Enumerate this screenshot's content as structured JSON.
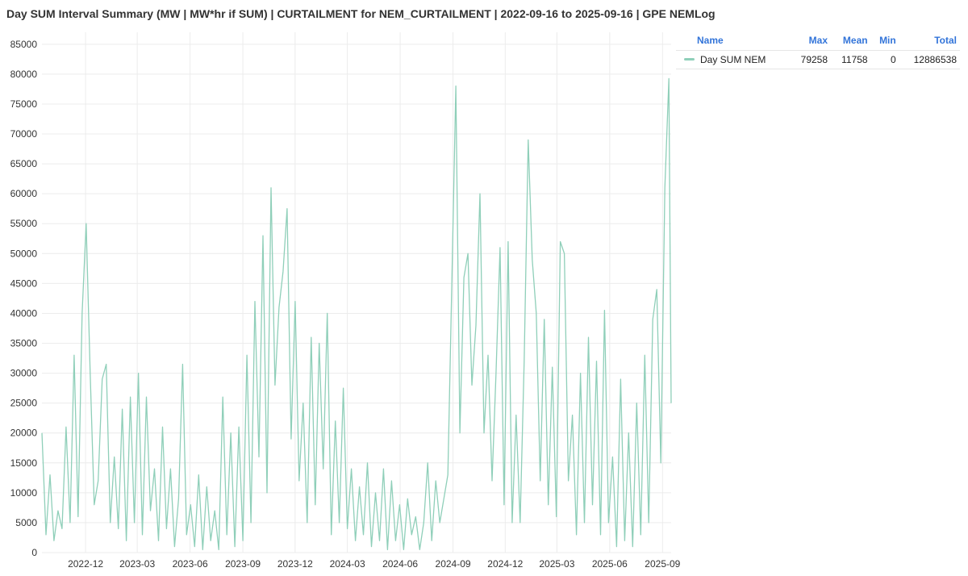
{
  "window": {
    "title": "Day SUM Interval Summary (MW | MW*hr if SUM) | CURTAILMENT for NEM_CURTAILMENT | 2022-09-16 to 2025-09-16 | GPE NEMLog"
  },
  "legend": {
    "columns": {
      "name": "Name",
      "max": "Max",
      "mean": "Mean",
      "min": "Min",
      "total": "Total"
    },
    "rows": [
      {
        "name": "Day SUM NEM",
        "max": "79258",
        "mean": "11758",
        "min": "0",
        "total": "12886538",
        "color": "#8fcfb9"
      }
    ]
  },
  "chart_data": {
    "type": "line",
    "title": "Day SUM Interval Summary (MW | MW*hr if SUM) | CURTAILMENT for NEM_CURTAILMENT | 2022-09-16 to 2025-09-16 | GPE NEMLog",
    "xlabel": "",
    "ylabel": "",
    "xlim": [
      "2022-09-16",
      "2025-09-16"
    ],
    "ylim": [
      0,
      87000
    ],
    "grid": true,
    "legend_position": "top-right",
    "series_color": "#8fcfb9",
    "y_ticks": [
      "0",
      "5000",
      "10000",
      "15000",
      "20000",
      "25000",
      "30000",
      "35000",
      "40000",
      "45000",
      "50000",
      "55000",
      "60000",
      "65000",
      "70000",
      "75000",
      "80000",
      "85000"
    ],
    "x_ticks": [
      {
        "date": "2022-12-01",
        "label": "2022-12"
      },
      {
        "date": "2023-03-01",
        "label": "2023-03"
      },
      {
        "date": "2023-06-01",
        "label": "2023-06"
      },
      {
        "date": "2023-09-01",
        "label": "2023-09"
      },
      {
        "date": "2023-12-01",
        "label": "2023-12"
      },
      {
        "date": "2024-03-01",
        "label": "2024-03"
      },
      {
        "date": "2024-06-01",
        "label": "2024-06"
      },
      {
        "date": "2024-09-01",
        "label": "2024-09"
      },
      {
        "date": "2024-12-01",
        "label": "2024-12"
      },
      {
        "date": "2025-03-01",
        "label": "2025-03"
      },
      {
        "date": "2025-06-01",
        "label": "2025-06"
      },
      {
        "date": "2025-09-01",
        "label": "2025-09"
      }
    ],
    "series": [
      {
        "name": "Day SUM NEM",
        "points": [
          [
            "2022-09-16",
            20000
          ],
          [
            "2022-09-23",
            3000
          ],
          [
            "2022-09-30",
            13000
          ],
          [
            "2022-10-07",
            2000
          ],
          [
            "2022-10-14",
            7000
          ],
          [
            "2022-10-21",
            4000
          ],
          [
            "2022-10-28",
            21000
          ],
          [
            "2022-11-04",
            5000
          ],
          [
            "2022-11-11",
            33000
          ],
          [
            "2022-11-18",
            6000
          ],
          [
            "2022-11-25",
            40000
          ],
          [
            "2022-12-02",
            55000
          ],
          [
            "2022-12-09",
            30000
          ],
          [
            "2022-12-16",
            8000
          ],
          [
            "2022-12-23",
            12000
          ],
          [
            "2022-12-30",
            29000
          ],
          [
            "2023-01-06",
            31500
          ],
          [
            "2023-01-13",
            5000
          ],
          [
            "2023-01-20",
            16000
          ],
          [
            "2023-01-27",
            4000
          ],
          [
            "2023-02-03",
            24000
          ],
          [
            "2023-02-10",
            2000
          ],
          [
            "2023-02-17",
            26000
          ],
          [
            "2023-02-24",
            5000
          ],
          [
            "2023-03-03",
            30000
          ],
          [
            "2023-03-10",
            3000
          ],
          [
            "2023-03-17",
            26000
          ],
          [
            "2023-03-24",
            7000
          ],
          [
            "2023-03-31",
            14000
          ],
          [
            "2023-04-07",
            2000
          ],
          [
            "2023-04-14",
            21000
          ],
          [
            "2023-04-21",
            4000
          ],
          [
            "2023-04-28",
            14000
          ],
          [
            "2023-05-05",
            1000
          ],
          [
            "2023-05-12",
            9000
          ],
          [
            "2023-05-19",
            31500
          ],
          [
            "2023-05-26",
            3000
          ],
          [
            "2023-06-02",
            8000
          ],
          [
            "2023-06-09",
            1000
          ],
          [
            "2023-06-16",
            13000
          ],
          [
            "2023-06-23",
            500
          ],
          [
            "2023-06-30",
            11000
          ],
          [
            "2023-07-07",
            2000
          ],
          [
            "2023-07-14",
            7000
          ],
          [
            "2023-07-21",
            500
          ],
          [
            "2023-07-28",
            26000
          ],
          [
            "2023-08-04",
            3000
          ],
          [
            "2023-08-11",
            20000
          ],
          [
            "2023-08-18",
            1000
          ],
          [
            "2023-08-25",
            21000
          ],
          [
            "2023-09-01",
            2000
          ],
          [
            "2023-09-08",
            33000
          ],
          [
            "2023-09-15",
            5000
          ],
          [
            "2023-09-22",
            42000
          ],
          [
            "2023-09-29",
            16000
          ],
          [
            "2023-10-06",
            53000
          ],
          [
            "2023-10-13",
            10000
          ],
          [
            "2023-10-20",
            61000
          ],
          [
            "2023-10-27",
            28000
          ],
          [
            "2023-11-03",
            41000
          ],
          [
            "2023-11-10",
            47000
          ],
          [
            "2023-11-17",
            57500
          ],
          [
            "2023-11-24",
            19000
          ],
          [
            "2023-12-01",
            42000
          ],
          [
            "2023-12-08",
            12000
          ],
          [
            "2023-12-15",
            25000
          ],
          [
            "2023-12-22",
            5000
          ],
          [
            "2023-12-29",
            36000
          ],
          [
            "2024-01-05",
            8000
          ],
          [
            "2024-01-12",
            35000
          ],
          [
            "2024-01-19",
            14000
          ],
          [
            "2024-01-26",
            40000
          ],
          [
            "2024-02-02",
            3000
          ],
          [
            "2024-02-09",
            22000
          ],
          [
            "2024-02-16",
            5000
          ],
          [
            "2024-02-23",
            27500
          ],
          [
            "2024-03-01",
            4000
          ],
          [
            "2024-03-08",
            14000
          ],
          [
            "2024-03-15",
            2000
          ],
          [
            "2024-03-22",
            11000
          ],
          [
            "2024-03-29",
            3000
          ],
          [
            "2024-04-05",
            15000
          ],
          [
            "2024-04-12",
            1000
          ],
          [
            "2024-04-19",
            10000
          ],
          [
            "2024-04-26",
            2000
          ],
          [
            "2024-05-03",
            14000
          ],
          [
            "2024-05-10",
            500
          ],
          [
            "2024-05-17",
            12000
          ],
          [
            "2024-05-24",
            2000
          ],
          [
            "2024-05-31",
            8000
          ],
          [
            "2024-06-07",
            500
          ],
          [
            "2024-06-14",
            9000
          ],
          [
            "2024-06-21",
            3000
          ],
          [
            "2024-06-28",
            6000
          ],
          [
            "2024-07-05",
            500
          ],
          [
            "2024-07-12",
            5000
          ],
          [
            "2024-07-19",
            15000
          ],
          [
            "2024-07-26",
            2000
          ],
          [
            "2024-08-02",
            12000
          ],
          [
            "2024-08-09",
            5000
          ],
          [
            "2024-08-16",
            9000
          ],
          [
            "2024-08-23",
            13000
          ],
          [
            "2024-08-30",
            45000
          ],
          [
            "2024-09-06",
            78000
          ],
          [
            "2024-09-13",
            20000
          ],
          [
            "2024-09-20",
            46000
          ],
          [
            "2024-09-27",
            50000
          ],
          [
            "2024-10-04",
            28000
          ],
          [
            "2024-10-11",
            38000
          ],
          [
            "2024-10-18",
            60000
          ],
          [
            "2024-10-25",
            20000
          ],
          [
            "2024-11-01",
            33000
          ],
          [
            "2024-11-08",
            12000
          ],
          [
            "2024-11-15",
            30000
          ],
          [
            "2024-11-22",
            51000
          ],
          [
            "2024-11-29",
            8000
          ],
          [
            "2024-12-06",
            52000
          ],
          [
            "2024-12-13",
            5000
          ],
          [
            "2024-12-20",
            23000
          ],
          [
            "2024-12-27",
            5000
          ],
          [
            "2025-01-03",
            32000
          ],
          [
            "2025-01-10",
            69000
          ],
          [
            "2025-01-17",
            49000
          ],
          [
            "2025-01-24",
            40000
          ],
          [
            "2025-01-31",
            12000
          ],
          [
            "2025-02-07",
            39000
          ],
          [
            "2025-02-14",
            8000
          ],
          [
            "2025-02-21",
            31000
          ],
          [
            "2025-02-28",
            6000
          ],
          [
            "2025-03-07",
            52000
          ],
          [
            "2025-03-14",
            50000
          ],
          [
            "2025-03-21",
            12000
          ],
          [
            "2025-03-28",
            23000
          ],
          [
            "2025-04-04",
            3000
          ],
          [
            "2025-04-11",
            30000
          ],
          [
            "2025-04-18",
            5000
          ],
          [
            "2025-04-25",
            36000
          ],
          [
            "2025-05-02",
            8000
          ],
          [
            "2025-05-09",
            32000
          ],
          [
            "2025-05-16",
            3000
          ],
          [
            "2025-05-23",
            40500
          ],
          [
            "2025-05-30",
            5000
          ],
          [
            "2025-06-06",
            16000
          ],
          [
            "2025-06-13",
            1000
          ],
          [
            "2025-06-20",
            29000
          ],
          [
            "2025-06-27",
            2000
          ],
          [
            "2025-07-04",
            20000
          ],
          [
            "2025-07-11",
            1000
          ],
          [
            "2025-07-18",
            25000
          ],
          [
            "2025-07-25",
            3000
          ],
          [
            "2025-08-01",
            33000
          ],
          [
            "2025-08-08",
            5000
          ],
          [
            "2025-08-15",
            39000
          ],
          [
            "2025-08-22",
            44000
          ],
          [
            "2025-08-29",
            15000
          ],
          [
            "2025-09-05",
            61000
          ],
          [
            "2025-09-12",
            79258
          ],
          [
            "2025-09-16",
            25000
          ]
        ]
      }
    ]
  }
}
